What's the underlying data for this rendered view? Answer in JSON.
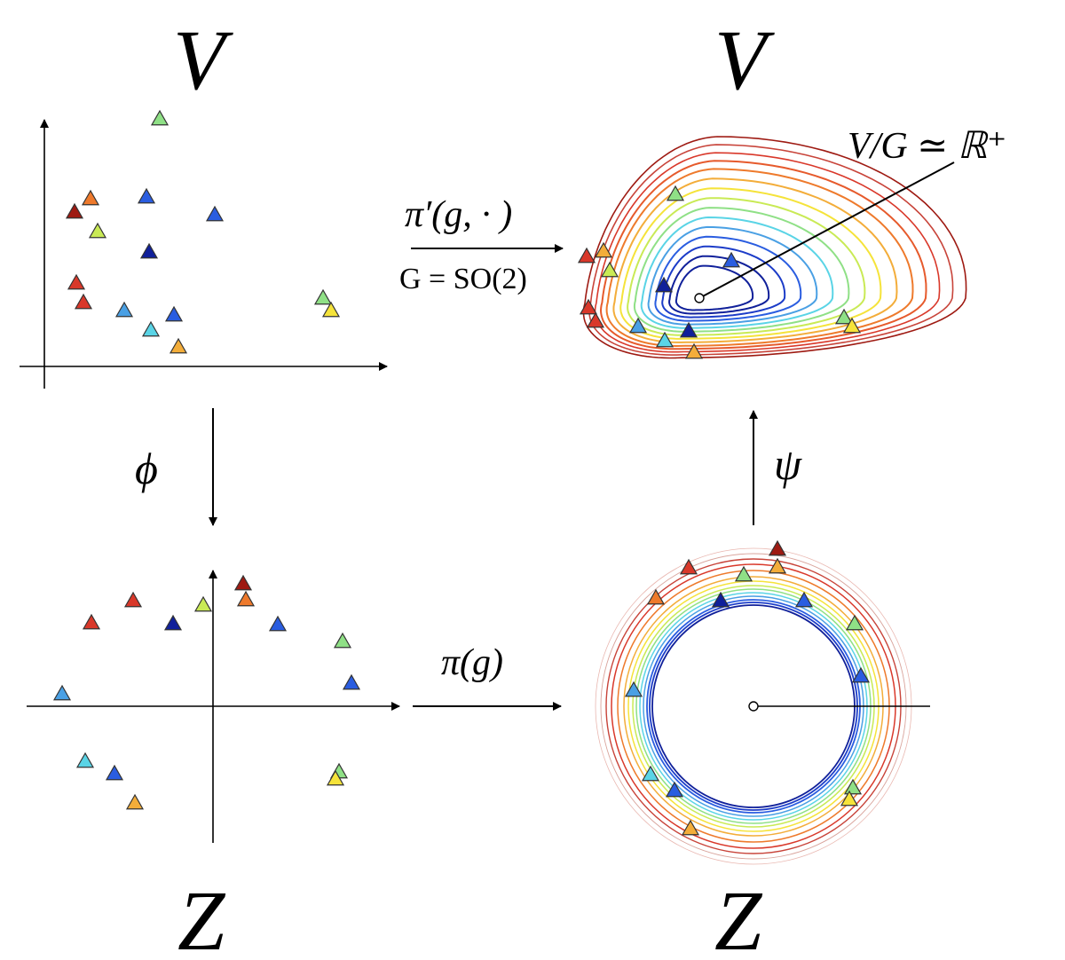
{
  "labels": {
    "v_left": "V",
    "v_right": "V",
    "z_left": "Z",
    "z_right": "Z",
    "phi": "ϕ",
    "psi": "ψ",
    "pi_g": "π(g)",
    "pi_prime": "π′(g, · )",
    "group": "G = SO(2)",
    "quotient": "V/G ≃ ℝ⁺"
  },
  "colors": {
    "dark_red": "#9e1a12",
    "red": "#d9382a",
    "orange": "#ee7a2c",
    "amber": "#f3ad3a",
    "yellow": "#f5e33a",
    "yellow_green": "#c9ea55",
    "light_green": "#8fe086",
    "cyan": "#5ad4e6",
    "sky": "#4aa0e4",
    "blue": "#2a5de0",
    "dark_blue": "#10209a"
  }
}
